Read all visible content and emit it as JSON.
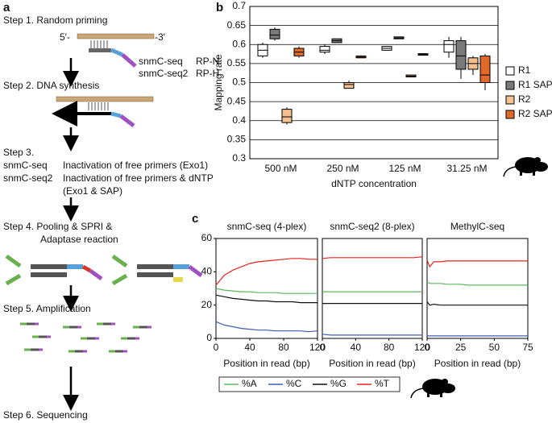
{
  "panel_a": {
    "label": "a",
    "step1": "Step 1. Random priming",
    "five": "5′-",
    "three": "-3′",
    "primers": [
      [
        "snmC-seq",
        "RP-N"
      ],
      [
        "snmC-seq2",
        "RP-H"
      ]
    ],
    "step2": "Step 2. DNA synthesis",
    "step3": "Step 3.",
    "step3_rows": [
      [
        "snmC-seq",
        "Inactivation of free primers (Exo1)"
      ],
      [
        "snmC-seq2",
        "Inactivation of free primers & dNTP"
      ]
    ],
    "step3_tail": "(Exo1 & SAP)",
    "step4": [
      "Step 4. Pooling & SPRI &",
      "Adaptase reaction"
    ],
    "step5": "Step 5. Amplification",
    "step6": "Step 6. Sequencing"
  },
  "chart_data": [
    {
      "type": "box",
      "panel": "b",
      "xlabel": "dNTP concentration",
      "ylabel": "Mapping rate",
      "categories": [
        "500 nM",
        "250 nM",
        "125 nM",
        "31.25 nM"
      ],
      "ylim": [
        0.3,
        0.7
      ],
      "yticks": [
        0.3,
        0.35,
        0.4,
        0.45,
        0.5,
        0.55,
        0.6,
        0.65,
        0.7
      ],
      "grid": true,
      "series": [
        {
          "name": "R1",
          "color": "#ffffff",
          "min": [
            0.565,
            0.575,
            0.585,
            0.565
          ],
          "q1": [
            0.57,
            0.58,
            0.585,
            0.58
          ],
          "median": [
            0.585,
            0.585,
            0.59,
            0.6
          ],
          "q3": [
            0.6,
            0.595,
            0.595,
            0.61
          ],
          "max": [
            0.605,
            0.6,
            0.595,
            0.62
          ]
        },
        {
          "name": "R1 SAP",
          "color": "#7a7a7a",
          "min": [
            0.61,
            0.605,
            0.615,
            0.51
          ],
          "q1": [
            0.615,
            0.605,
            0.615,
            0.535
          ],
          "median": [
            0.625,
            0.61,
            0.617,
            0.57
          ],
          "q3": [
            0.64,
            0.615,
            0.62,
            0.61
          ],
          "max": [
            0.645,
            0.615,
            0.62,
            0.62
          ]
        },
        {
          "name": "R2",
          "color": "#f5c08f",
          "min": [
            0.39,
            0.485,
            0.515,
            0.52
          ],
          "q1": [
            0.395,
            0.485,
            0.515,
            0.535
          ],
          "median": [
            0.41,
            0.495,
            0.517,
            0.55
          ],
          "q3": [
            0.43,
            0.5,
            0.52,
            0.565
          ],
          "max": [
            0.435,
            0.505,
            0.52,
            0.57
          ]
        },
        {
          "name": "R2 SAP",
          "color": "#e0682a",
          "min": [
            0.565,
            0.565,
            0.572,
            0.48
          ],
          "q1": [
            0.57,
            0.565,
            0.572,
            0.5
          ],
          "median": [
            0.58,
            0.567,
            0.574,
            0.52
          ],
          "q3": [
            0.59,
            0.57,
            0.576,
            0.57
          ],
          "max": [
            0.595,
            0.57,
            0.576,
            0.575
          ]
        }
      ]
    },
    {
      "type": "line",
      "panel": "c",
      "title": "snmC-seq (4-plex)",
      "xlabel": "Position in read (bp)",
      "x": [
        0,
        10,
        20,
        30,
        40,
        50,
        60,
        70,
        80,
        90,
        100,
        110,
        120
      ],
      "xlim": [
        0,
        120
      ],
      "xticks": [
        0,
        40,
        80,
        120
      ],
      "ylim": [
        0,
        60
      ],
      "yticks": [
        0,
        20,
        40,
        60
      ],
      "series": [
        {
          "name": "%A",
          "color": "#5cb85c",
          "values": [
            30,
            29,
            28.5,
            28,
            28,
            27.5,
            27.5,
            27.5,
            27,
            27,
            27,
            27,
            27
          ]
        },
        {
          "name": "%C",
          "color": "#3b5db8",
          "values": [
            10,
            8,
            7,
            6,
            5.5,
            5,
            5,
            4.5,
            4.5,
            4.5,
            4.5,
            4,
            4.5
          ]
        },
        {
          "name": "%G",
          "color": "#111111",
          "values": [
            26,
            25,
            24,
            23.5,
            23,
            22.5,
            22.5,
            22,
            22,
            22,
            21.5,
            21.5,
            21.5
          ]
        },
        {
          "name": "%T",
          "color": "#e8231f",
          "values": [
            32,
            38,
            41,
            43,
            45,
            46,
            46.5,
            47,
            47.5,
            48,
            48,
            47.5,
            47.5
          ]
        }
      ]
    },
    {
      "type": "line",
      "title": "snmC-seq2 (8-plex)",
      "xlabel": "Position in read (bp)",
      "x": [
        0,
        10,
        20,
        30,
        40,
        50,
        60,
        70,
        80,
        90,
        100,
        110,
        120
      ],
      "xlim": [
        0,
        120
      ],
      "xticks": [
        0,
        40,
        80,
        120
      ],
      "ylim": [
        0,
        60
      ],
      "series": [
        {
          "color": "#5cb85c",
          "values": [
            28,
            28,
            28,
            28,
            28,
            28,
            28,
            28,
            28,
            28,
            28,
            28,
            28
          ]
        },
        {
          "color": "#3b5db8",
          "values": [
            2.5,
            2,
            2,
            2,
            2,
            2,
            2,
            2,
            2,
            2,
            2,
            2,
            2
          ]
        },
        {
          "color": "#111111",
          "values": [
            21,
            21,
            21,
            21,
            21,
            21,
            21,
            21,
            21,
            21,
            21,
            21,
            21
          ]
        },
        {
          "color": "#e8231f",
          "values": [
            48,
            48.5,
            48.5,
            48.5,
            48.5,
            48.5,
            48.5,
            48.5,
            48.5,
            48.5,
            48.5,
            48.5,
            49
          ]
        }
      ]
    },
    {
      "type": "line",
      "title": "MethylC-seq",
      "xlabel": "Position in read (bp)",
      "x": [
        0,
        2,
        5,
        10,
        15,
        20,
        25,
        30,
        35,
        40,
        45,
        50,
        55,
        60,
        65,
        70,
        75
      ],
      "xlim": [
        0,
        75
      ],
      "xticks": [
        0,
        25,
        50,
        75
      ],
      "ylim": [
        0,
        60
      ],
      "series": [
        {
          "color": "#5cb85c",
          "values": [
            34,
            33,
            33,
            33,
            32.5,
            32.5,
            32.5,
            32,
            32,
            32,
            32,
            32,
            32,
            32,
            32,
            32,
            32
          ]
        },
        {
          "color": "#3b5db8",
          "values": [
            1.5,
            1.5,
            1.5,
            1.5,
            1.5,
            1.5,
            1.5,
            1.5,
            1.5,
            1.5,
            1.5,
            1.5,
            1.5,
            1.5,
            1.5,
            1.5,
            1.5
          ]
        },
        {
          "color": "#111111",
          "values": [
            22,
            20,
            20.5,
            20,
            20,
            20,
            20,
            20,
            20,
            20,
            20,
            20,
            20,
            20,
            20,
            20,
            20
          ]
        },
        {
          "color": "#e8231f",
          "values": [
            47,
            43,
            46,
            46,
            46.5,
            46.5,
            46.5,
            46.5,
            46.5,
            46.5,
            46.5,
            46.5,
            46.5,
            46.5,
            46.5,
            46.5,
            46.5
          ]
        }
      ]
    }
  ]
}
